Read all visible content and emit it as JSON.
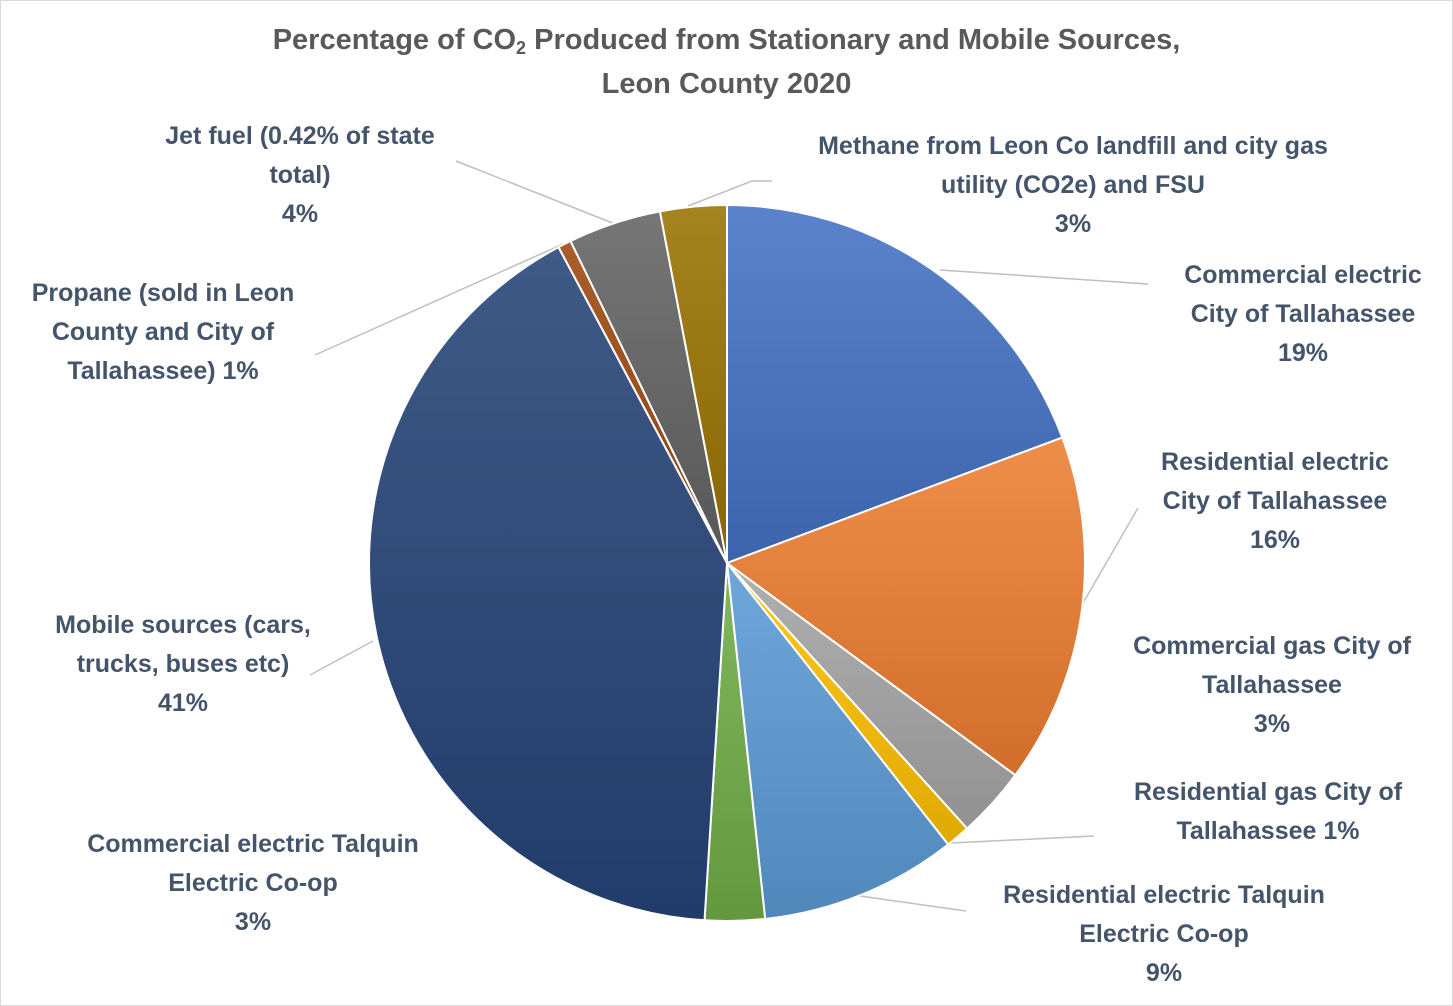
{
  "chart_data": {
    "type": "pie",
    "title": {
      "prefix": "Percentage of CO",
      "subscript": "2",
      "suffix": " Produced from Stationary and Mobile Sources,",
      "line2": "Leon County 2020"
    },
    "slices": [
      {
        "lines": [
          "Commercial electric",
          "City of Tallahassee"
        ],
        "value_label": "19%",
        "value": 19.3,
        "color": "#4472c4"
      },
      {
        "lines": [
          "Residential electric",
          "City of Tallahassee"
        ],
        "value_label": "16%",
        "value": 15.8,
        "color": "#ed7d31"
      },
      {
        "lines": [
          "Commercial gas City of",
          "Tallahassee"
        ],
        "value_label": "3%",
        "value": 3.2,
        "color": "#a5a5a5"
      },
      {
        "lines": [
          "Residential gas City of",
          "Tallahassee 1%"
        ],
        "value_label": "",
        "value": 1.1,
        "color": "#ffc000"
      },
      {
        "lines": [
          "Residential electric Talquin",
          "Electric Co-op"
        ],
        "value_label": "9%",
        "value": 8.9,
        "color": "#5b9bd5"
      },
      {
        "lines": [
          "Commercial electric Talquin",
          "Electric Co-op"
        ],
        "value_label": "3%",
        "value": 2.7,
        "color": "#70ad47"
      },
      {
        "lines": [
          "Mobile sources (cars,",
          "trucks, buses etc)"
        ],
        "value_label": "41%",
        "value": 41.2,
        "color": "#264478"
      },
      {
        "lines": [
          "Propane (sold in Leon",
          "County and City of",
          "Tallahassee) 1%"
        ],
        "value_label": "",
        "value": 0.6,
        "color": "#9e480e"
      },
      {
        "lines": [
          "Jet fuel (0.42% of state",
          "total)"
        ],
        "value_label": "4%",
        "value": 4.2,
        "color": "#636363"
      },
      {
        "lines": [
          "Methane from Leon Co landfill and city gas",
          "utility (CO2e) and FSU"
        ],
        "value_label": "3%",
        "value": 3.0,
        "color": "#997300"
      }
    ]
  }
}
